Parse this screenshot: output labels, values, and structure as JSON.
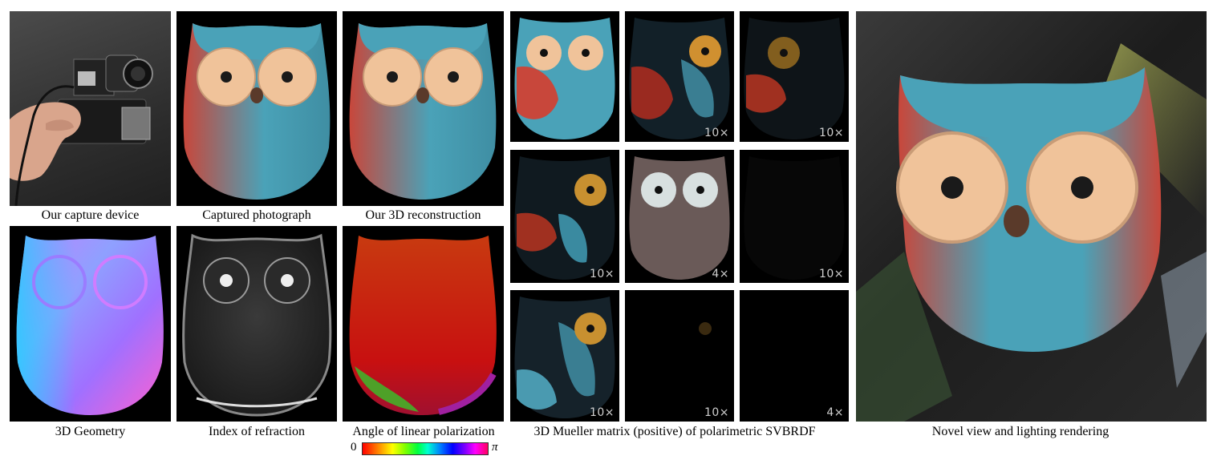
{
  "captions": {
    "capture_device": "Our capture device",
    "captured_photo": "Captured photograph",
    "reconstruction": "Our 3D reconstruction",
    "geometry": "3D Geometry",
    "ior": "Index of refraction",
    "aolp": "Angle of linear polarization",
    "mueller": "3D Mueller matrix (positive) of polarimetric SVBRDF",
    "novel_view": "Novel view and lighting rendering"
  },
  "colorbar": {
    "min_label": "0",
    "max_label": "π"
  },
  "mueller_badges": [
    "",
    "10×",
    "10×",
    "10×",
    "4×",
    "10×",
    "10×",
    "10×",
    "4×"
  ],
  "colors": {
    "owl_teal": "#4aa2b8",
    "owl_red": "#c8473b",
    "owl_eye": "#f0c39a",
    "background": "#000000"
  }
}
